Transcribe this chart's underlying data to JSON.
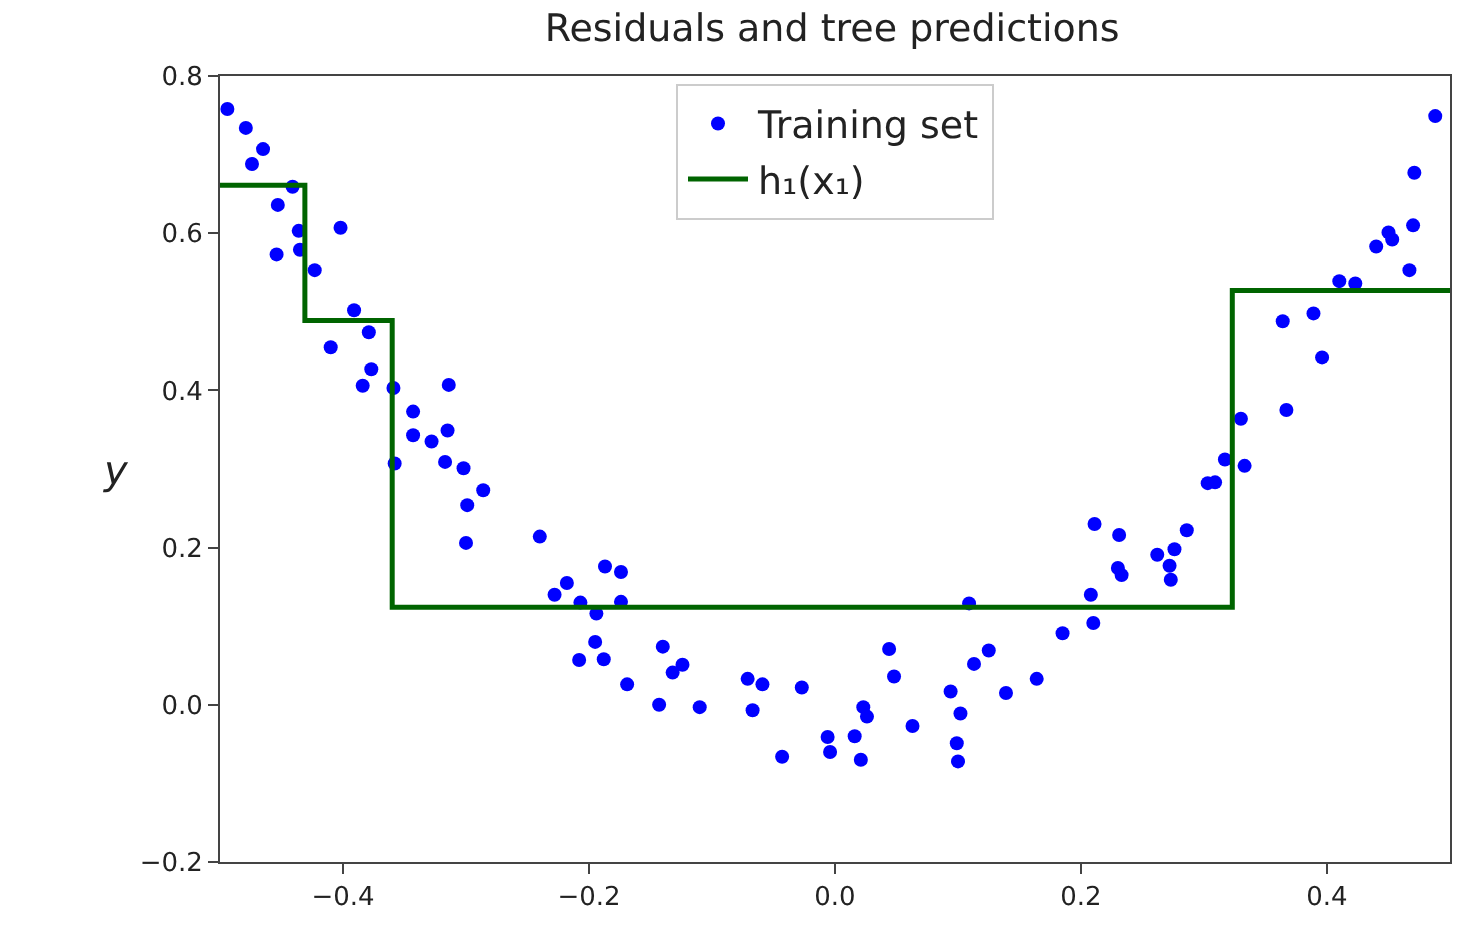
{
  "chart_data": {
    "type": "scatter",
    "title": "Residuals and tree predictions",
    "ylabel": "y",
    "xlim": [
      -0.5,
      0.5
    ],
    "xticks": [
      {
        "value": -0.4,
        "label": "−0.4"
      },
      {
        "value": -0.2,
        "label": "−0.2"
      },
      {
        "value": 0,
        "label": "0.0"
      },
      {
        "value": 0.2,
        "label": "0.2"
      },
      {
        "value": 0.4,
        "label": "0.4"
      }
    ],
    "ylim": [
      -0.2,
      0.8
    ],
    "yticks": [
      {
        "value": -0.2,
        "label": "−0.2"
      },
      {
        "value": 0,
        "label": "0.0"
      },
      {
        "value": 0.2,
        "label": "0.2"
      },
      {
        "value": 0.4,
        "label": "0.4"
      },
      {
        "value": 0.6,
        "label": "0.6"
      },
      {
        "value": 0.8,
        "label": "0.8"
      }
    ],
    "legend": "top",
    "marker": "circle",
    "series": [
      {
        "name": "Training set",
        "color": "#0000ff",
        "x": [
          -0.494,
          -0.479,
          -0.465,
          -0.474,
          -0.441,
          -0.453,
          -0.402,
          -0.436,
          -0.454,
          -0.435,
          -0.423,
          -0.391,
          -0.379,
          -0.41,
          -0.377,
          -0.384,
          -0.359,
          -0.314,
          -0.343,
          -0.343,
          -0.315,
          -0.328,
          -0.358,
          -0.317,
          -0.302,
          -0.286,
          -0.299,
          -0.3,
          -0.24,
          -0.218,
          -0.228,
          -0.187,
          -0.174,
          -0.207,
          -0.174,
          -0.194,
          -0.195,
          -0.208,
          -0.188,
          -0.14,
          -0.169,
          -0.124,
          -0.132,
          -0.143,
          -0.11,
          -0.071,
          -0.059,
          -0.067,
          -0.027,
          -0.043,
          -0.006,
          -0.004,
          0.016,
          0.021,
          0.023,
          0.026,
          0.044,
          0.048,
          0.063,
          0.094,
          0.102,
          0.099,
          0.1,
          0.109,
          0.113,
          0.125,
          0.139,
          0.164,
          0.185,
          0.21,
          0.208,
          0.23,
          0.233,
          0.211,
          0.231,
          0.262,
          0.276,
          0.272,
          0.273,
          0.286,
          0.303,
          0.309,
          0.317,
          0.333,
          0.33,
          0.367,
          0.364,
          0.389,
          0.396,
          0.41,
          0.423,
          0.44,
          0.45,
          0.453,
          0.467,
          0.47,
          0.471,
          0.488
        ],
        "values": [
          0.758,
          0.734,
          0.707,
          0.688,
          0.659,
          0.636,
          0.607,
          0.603,
          0.573,
          0.579,
          0.553,
          0.502,
          0.474,
          0.455,
          0.427,
          0.406,
          0.403,
          0.407,
          0.373,
          0.343,
          0.349,
          0.335,
          0.307,
          0.309,
          0.301,
          0.273,
          0.254,
          0.206,
          0.214,
          0.155,
          0.14,
          0.176,
          0.169,
          0.13,
          0.131,
          0.116,
          0.08,
          0.057,
          0.058,
          0.074,
          0.026,
          0.051,
          0.041,
          0.0,
          -0.003,
          0.033,
          0.026,
          -0.007,
          0.022,
          -0.066,
          -0.041,
          -0.06,
          -0.04,
          -0.07,
          -0.003,
          -0.015,
          0.071,
          0.036,
          -0.027,
          0.017,
          -0.011,
          -0.049,
          -0.072,
          0.129,
          0.052,
          0.069,
          0.015,
          0.033,
          0.091,
          0.104,
          0.14,
          0.174,
          0.165,
          0.23,
          0.216,
          0.191,
          0.198,
          0.177,
          0.159,
          0.222,
          0.282,
          0.283,
          0.312,
          0.304,
          0.364,
          0.375,
          0.488,
          0.498,
          0.442,
          0.539,
          0.536,
          0.583,
          0.601,
          0.592,
          0.553,
          0.61,
          0.677,
          0.749
        ]
      },
      {
        "name": "h₁(x₁)",
        "type": "step",
        "color": "#006400",
        "marker": "none",
        "x": [
          -0.5,
          -0.431,
          -0.36,
          0.323,
          0.5
        ],
        "values": [
          0.661,
          0.489,
          0.124,
          0.527,
          0.527
        ]
      }
    ]
  }
}
